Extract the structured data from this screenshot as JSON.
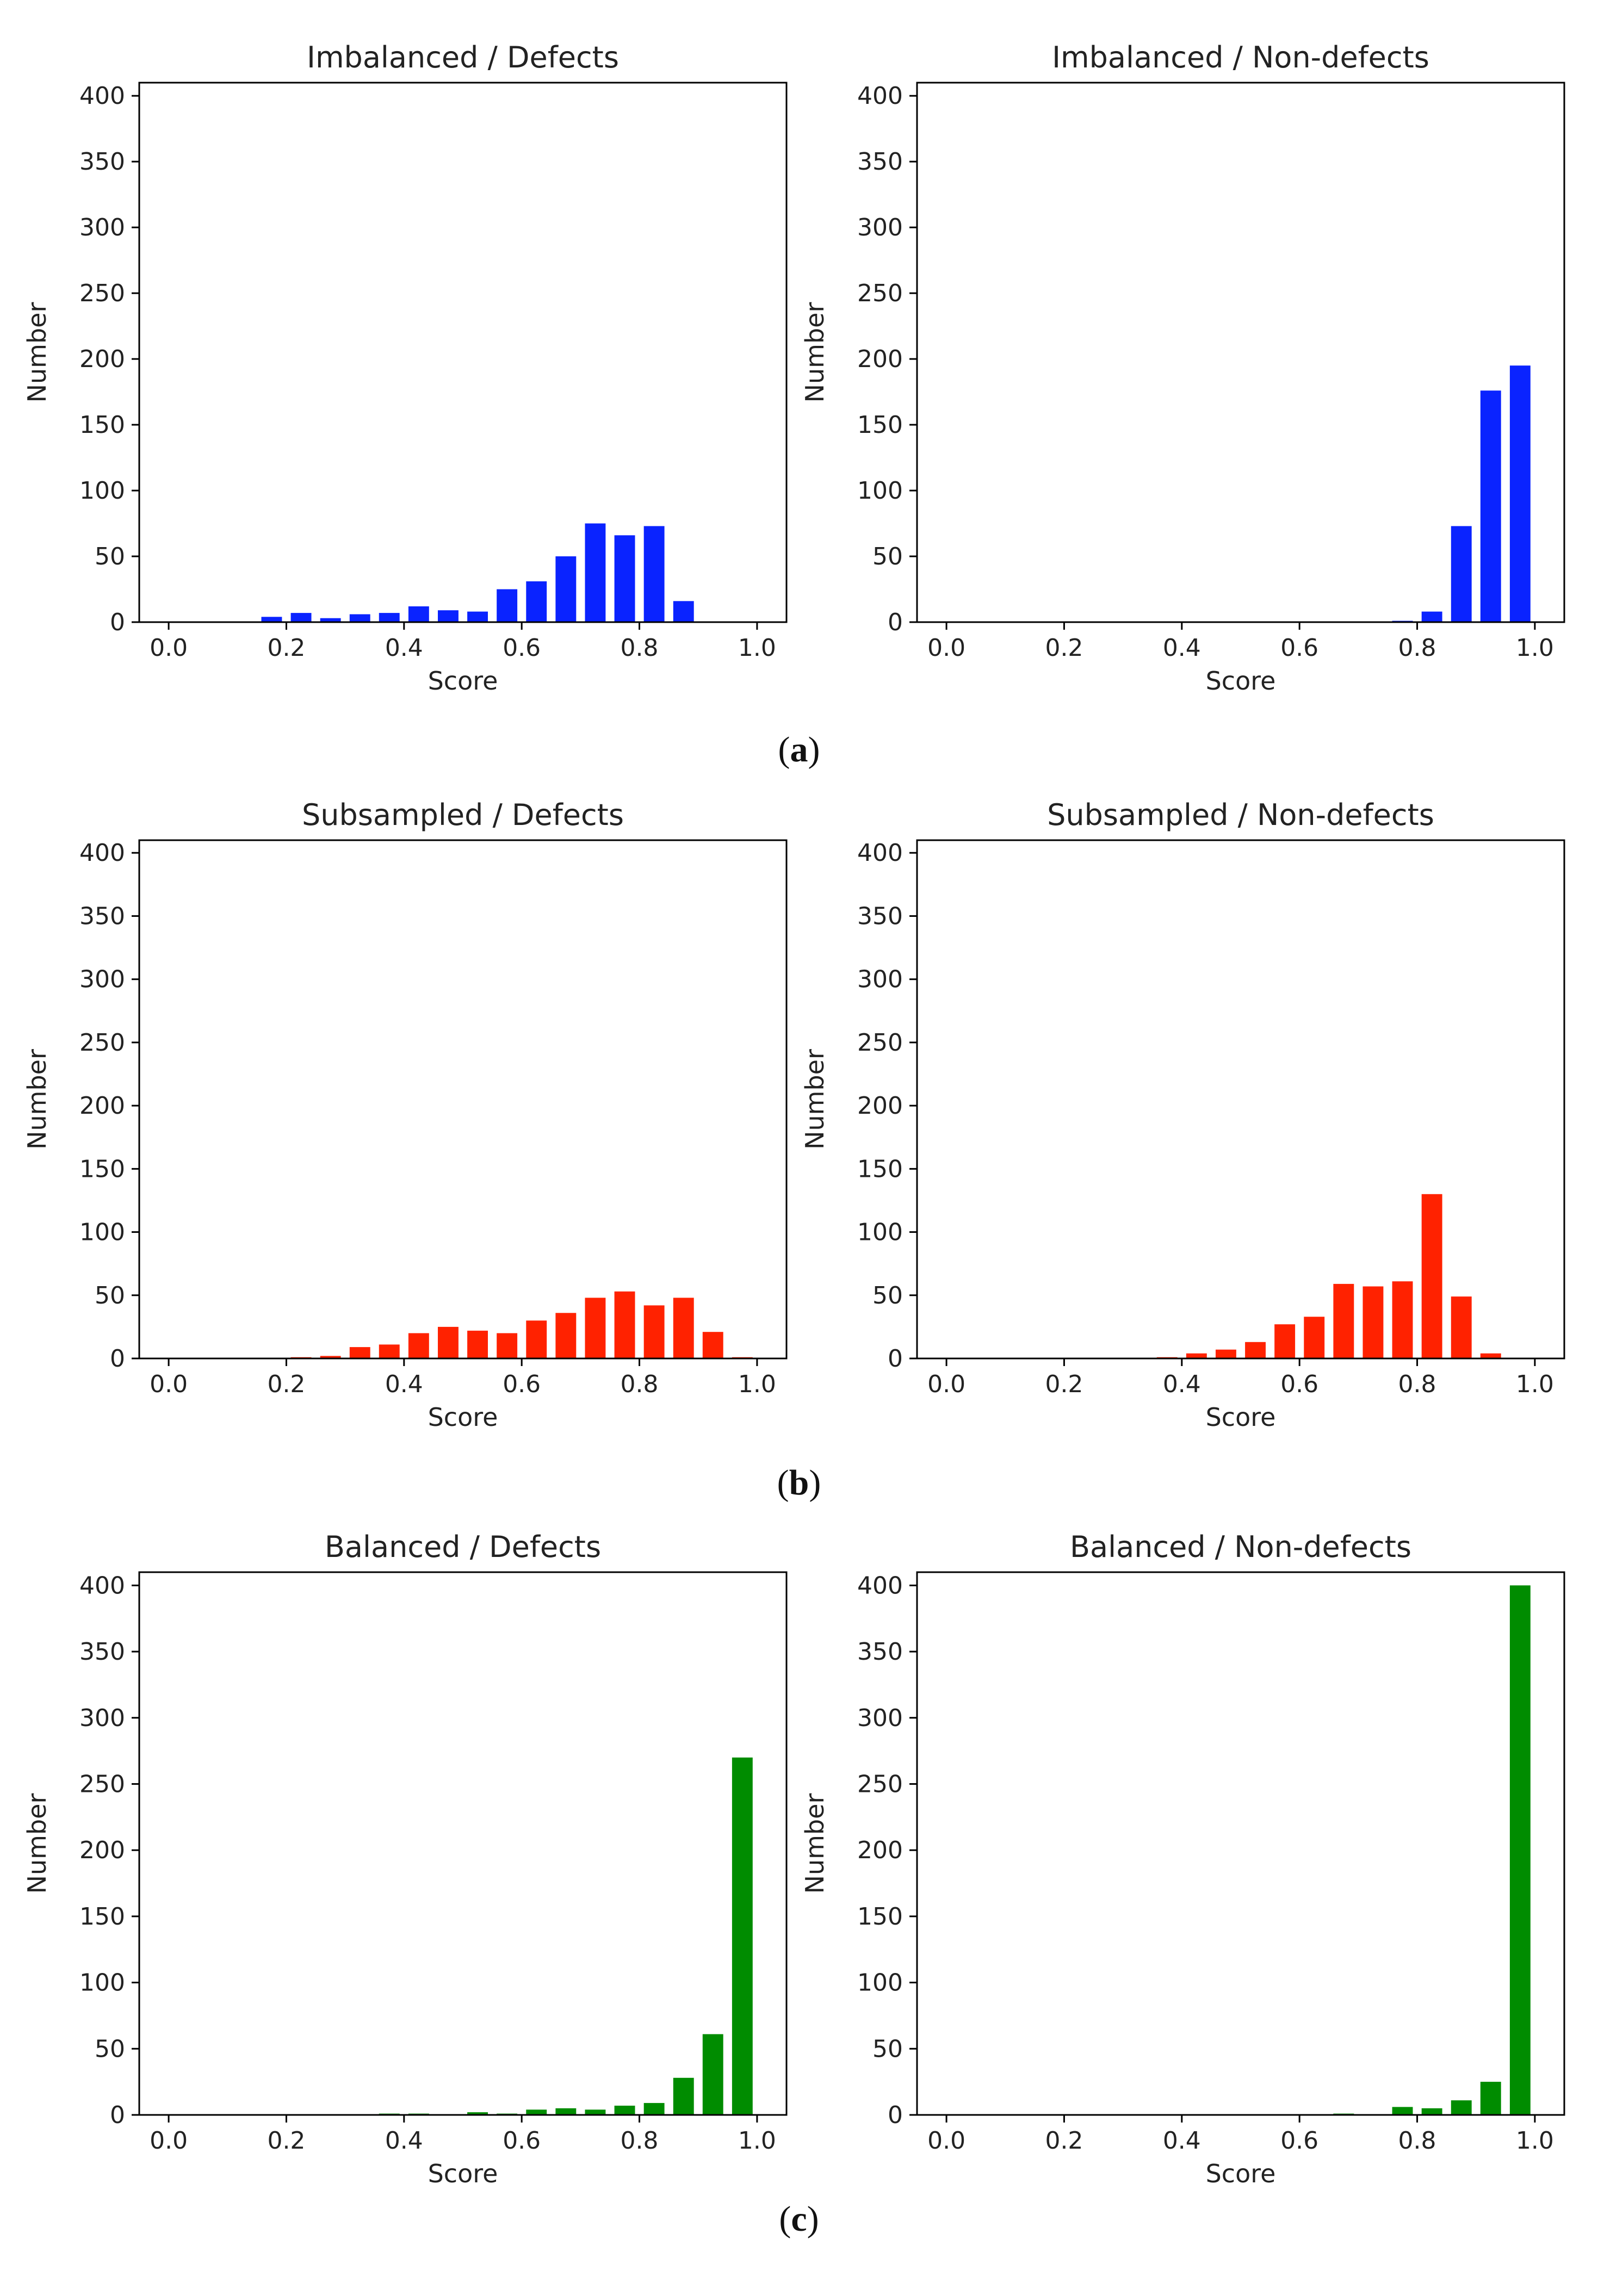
{
  "figure": {
    "captions": [
      "a",
      "b",
      "c"
    ]
  },
  "chart_data": [
    {
      "type": "bar",
      "title": "Imbalanced / Defects",
      "xlabel": "Score",
      "ylabel": "Number",
      "xlim": [
        0,
        1
      ],
      "ylim": [
        0,
        400
      ],
      "xticks": [
        "0.0",
        "0.2",
        "0.4",
        "0.6",
        "0.8",
        "1.0"
      ],
      "yticks": [
        "0",
        "50",
        "100",
        "150",
        "200",
        "250",
        "300",
        "350",
        "400"
      ],
      "bin_centers": [
        0.025,
        0.075,
        0.125,
        0.175,
        0.225,
        0.275,
        0.325,
        0.375,
        0.425,
        0.475,
        0.525,
        0.575,
        0.625,
        0.675,
        0.725,
        0.775,
        0.825,
        0.875,
        0.925,
        0.975
      ],
      "values": [
        0,
        0,
        0,
        4,
        7,
        3,
        6,
        7,
        12,
        9,
        8,
        25,
        31,
        50,
        75,
        66,
        73,
        16,
        0,
        0
      ],
      "color": "#0a23ff"
    },
    {
      "type": "bar",
      "title": "Imbalanced / Non-defects",
      "xlabel": "Score",
      "ylabel": "Number",
      "xlim": [
        0,
        1
      ],
      "ylim": [
        0,
        400
      ],
      "xticks": [
        "0.0",
        "0.2",
        "0.4",
        "0.6",
        "0.8",
        "1.0"
      ],
      "yticks": [
        "0",
        "50",
        "100",
        "150",
        "200",
        "250",
        "300",
        "350",
        "400"
      ],
      "bin_centers": [
        0.025,
        0.075,
        0.125,
        0.175,
        0.225,
        0.275,
        0.325,
        0.375,
        0.425,
        0.475,
        0.525,
        0.575,
        0.625,
        0.675,
        0.725,
        0.775,
        0.825,
        0.875,
        0.925,
        0.975
      ],
      "values": [
        0,
        0,
        0,
        0,
        0,
        0,
        0,
        0,
        0,
        0,
        0,
        0,
        0,
        0,
        0,
        1,
        8,
        73,
        176,
        195
      ],
      "color": "#0a23ff"
    },
    {
      "type": "bar",
      "title": "Subsampled / Defects",
      "xlabel": "Score",
      "ylabel": "Number",
      "xlim": [
        0,
        1
      ],
      "ylim": [
        0,
        400
      ],
      "xticks": [
        "0.0",
        "0.2",
        "0.4",
        "0.6",
        "0.8",
        "1.0"
      ],
      "yticks": [
        "0",
        "50",
        "100",
        "150",
        "200",
        "250",
        "300",
        "350",
        "400"
      ],
      "bin_centers": [
        0.025,
        0.075,
        0.125,
        0.175,
        0.225,
        0.275,
        0.325,
        0.375,
        0.425,
        0.475,
        0.525,
        0.575,
        0.625,
        0.675,
        0.725,
        0.775,
        0.825,
        0.875,
        0.925,
        0.975
      ],
      "values": [
        0,
        0,
        0,
        0,
        1,
        2,
        9,
        11,
        20,
        25,
        22,
        20,
        30,
        36,
        48,
        53,
        42,
        48,
        21,
        1
      ],
      "color": "#ff2200"
    },
    {
      "type": "bar",
      "title": "Subsampled / Non-defects",
      "xlabel": "Score",
      "ylabel": "Number",
      "xlim": [
        0,
        1
      ],
      "ylim": [
        0,
        400
      ],
      "xticks": [
        "0.0",
        "0.2",
        "0.4",
        "0.6",
        "0.8",
        "1.0"
      ],
      "yticks": [
        "0",
        "50",
        "100",
        "150",
        "200",
        "250",
        "300",
        "350",
        "400"
      ],
      "bin_centers": [
        0.025,
        0.075,
        0.125,
        0.175,
        0.225,
        0.275,
        0.325,
        0.375,
        0.425,
        0.475,
        0.525,
        0.575,
        0.625,
        0.675,
        0.725,
        0.775,
        0.825,
        0.875,
        0.925,
        0.975
      ],
      "values": [
        0,
        0,
        0,
        0,
        0,
        0,
        0,
        1,
        4,
        7,
        13,
        27,
        33,
        59,
        57,
        61,
        130,
        49,
        4,
        0
      ],
      "color": "#ff2200"
    },
    {
      "type": "bar",
      "title": "Balanced / Defects",
      "xlabel": "Score",
      "ylabel": "Number",
      "xlim": [
        0,
        1
      ],
      "ylim": [
        0,
        400
      ],
      "xticks": [
        "0.0",
        "0.2",
        "0.4",
        "0.6",
        "0.8",
        "1.0"
      ],
      "yticks": [
        "0",
        "50",
        "100",
        "150",
        "200",
        "250",
        "300",
        "350",
        "400"
      ],
      "bin_centers": [
        0.025,
        0.075,
        0.125,
        0.175,
        0.225,
        0.275,
        0.325,
        0.375,
        0.425,
        0.475,
        0.525,
        0.575,
        0.625,
        0.675,
        0.725,
        0.775,
        0.825,
        0.875,
        0.925,
        0.975
      ],
      "values": [
        0,
        0,
        0,
        0,
        0,
        0,
        0,
        1,
        1,
        0,
        2,
        1,
        4,
        5,
        4,
        7,
        9,
        28,
        61,
        270
      ],
      "color": "#008c00"
    },
    {
      "type": "bar",
      "title": "Balanced / Non-defects",
      "xlabel": "Score",
      "ylabel": "Number",
      "xlim": [
        0,
        1
      ],
      "ylim": [
        0,
        400
      ],
      "xticks": [
        "0.0",
        "0.2",
        "0.4",
        "0.6",
        "0.8",
        "1.0"
      ],
      "yticks": [
        "0",
        "50",
        "100",
        "150",
        "200",
        "250",
        "300",
        "350",
        "400"
      ],
      "bin_centers": [
        0.025,
        0.075,
        0.125,
        0.175,
        0.225,
        0.275,
        0.325,
        0.375,
        0.425,
        0.475,
        0.525,
        0.575,
        0.625,
        0.675,
        0.725,
        0.775,
        0.825,
        0.875,
        0.925,
        0.975
      ],
      "values": [
        0,
        0,
        0,
        0,
        0,
        0,
        0,
        0,
        0,
        0,
        0,
        0,
        0,
        1,
        0,
        6,
        5,
        11,
        25,
        400
      ],
      "color": "#008c00"
    }
  ]
}
